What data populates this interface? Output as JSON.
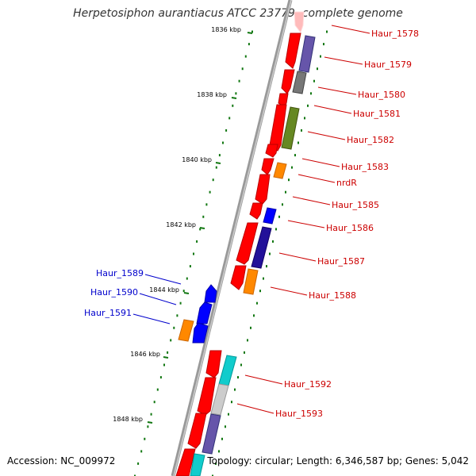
{
  "header": {
    "title": "Herpetosiphon aurantiacus ATCC 23779, complete genome"
  },
  "footer": {
    "accession": "Accession: NC_009972",
    "topology": "Topology: circular; Length: 6,346,587 bp; Genes: 5,042"
  },
  "colors": {
    "backbone": "#888888",
    "tick": "#117711",
    "cds_red": "#ff0000",
    "forward_label": "#cc0000",
    "reverse_label": "#0000cc",
    "reverse_cds": "#0000ff",
    "orange": "#ff8800",
    "slate_blue": "#6655aa",
    "grey": "#777777",
    "olive": "#668822",
    "cyan": "#11cccc",
    "light_grey": "#cccccc",
    "pink": "#ffbbbb",
    "navy": "#221199"
  },
  "ticks": [
    "1836 kbp",
    "1838 kbp",
    "1840 kbp",
    "1842 kbp",
    "1844 kbp",
    "1846 kbp",
    "1848 kbp"
  ],
  "labels": {
    "forward": [
      "Haur_1578",
      "Haur_1579",
      "Haur_1580",
      "Haur_1581",
      "Haur_1582",
      "Haur_1583",
      "nrdR",
      "Haur_1585",
      "Haur_1586",
      "Haur_1587",
      "Haur_1588",
      "Haur_1592",
      "Haur_1593"
    ],
    "reverse": [
      "Haur_1589",
      "Haur_1590",
      "Haur_1591"
    ]
  }
}
